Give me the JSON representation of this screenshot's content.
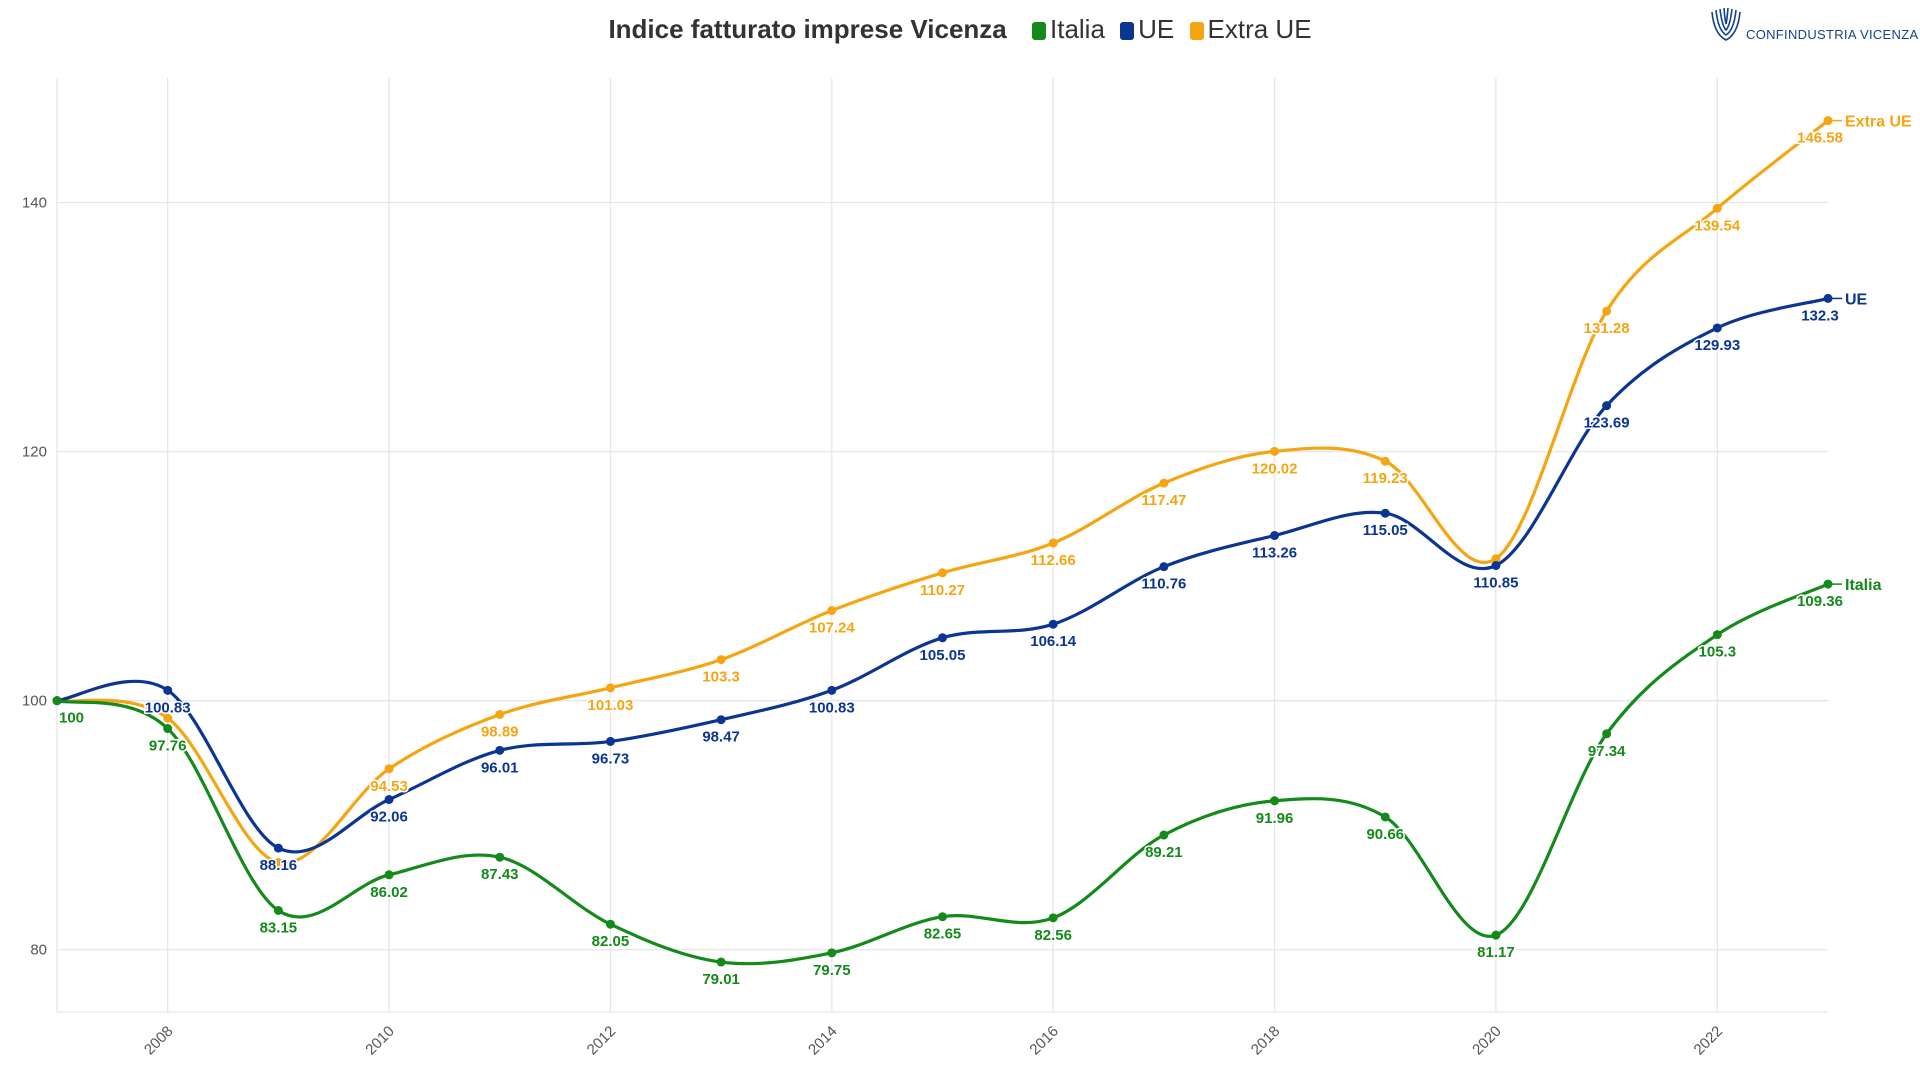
{
  "header": {
    "title": "Indice fatturato imprese Vicenza",
    "legend": [
      {
        "label": "Italia",
        "color": "#138a1a"
      },
      {
        "label": "UE",
        "color": "#0b3592"
      },
      {
        "label": "Extra UE",
        "color": "#f5a412"
      }
    ]
  },
  "logo": {
    "text": "CONFINDUSTRIA VICENZA",
    "icon": "confindustria-logo-icon"
  },
  "chart_data": {
    "type": "line",
    "title": "Indice fatturato imprese Vicenza",
    "xlabel": "",
    "ylabel": "",
    "x": [
      2007,
      2008,
      2009,
      2010,
      2011,
      2012,
      2013,
      2014,
      2015,
      2016,
      2017,
      2018,
      2019,
      2020,
      2021,
      2022,
      2023
    ],
    "xlim": [
      2007,
      2023
    ],
    "ylim": [
      75,
      150
    ],
    "x_ticks": [
      "2008",
      "2010",
      "2012",
      "2014",
      "2016",
      "2018",
      "2020",
      "2022"
    ],
    "y_ticks": [
      "80",
      "100",
      "120",
      "140"
    ],
    "grid": true,
    "legend_position": "top",
    "series": [
      {
        "name": "Extra UE",
        "color": "#f5a412",
        "values": [
          100,
          98.6,
          87,
          94.53,
          98.89,
          101.03,
          103.3,
          107.24,
          110.27,
          112.66,
          117.47,
          120.02,
          119.23,
          111.4,
          131.28,
          139.54,
          146.58
        ],
        "labels": [
          "",
          "",
          "",
          "94.53",
          "98.89",
          "101.03",
          "103.3",
          "107.24",
          "110.27",
          "112.66",
          "117.47",
          "120.02",
          "119.23",
          "",
          "131.28",
          "139.54",
          "146.58"
        ]
      },
      {
        "name": "UE",
        "color": "#0b3592",
        "values": [
          100,
          100.83,
          88.16,
          92.06,
          96.01,
          96.73,
          98.47,
          100.83,
          105.05,
          106.14,
          110.76,
          113.26,
          115.05,
          110.85,
          123.69,
          129.93,
          132.3
        ],
        "labels": [
          "",
          "100.83",
          "88.16",
          "92.06",
          "96.01",
          "96.73",
          "98.47",
          "100.83",
          "105.05",
          "106.14",
          "110.76",
          "113.26",
          "115.05",
          "110.85",
          "123.69",
          "129.93",
          "132.3"
        ]
      },
      {
        "name": "Italia",
        "color": "#138a1a",
        "values": [
          100,
          97.76,
          83.15,
          86.02,
          87.43,
          82.05,
          79.01,
          79.75,
          82.65,
          82.56,
          89.21,
          91.96,
          90.66,
          81.17,
          97.34,
          105.3,
          109.36
        ],
        "labels": [
          "100",
          "97.76",
          "83.15",
          "86.02",
          "87.43",
          "82.05",
          "79.01",
          "79.75",
          "82.65",
          "82.56",
          "89.21",
          "91.96",
          "90.66",
          "81.17",
          "97.34",
          "105.3",
          "109.36"
        ]
      }
    ]
  }
}
